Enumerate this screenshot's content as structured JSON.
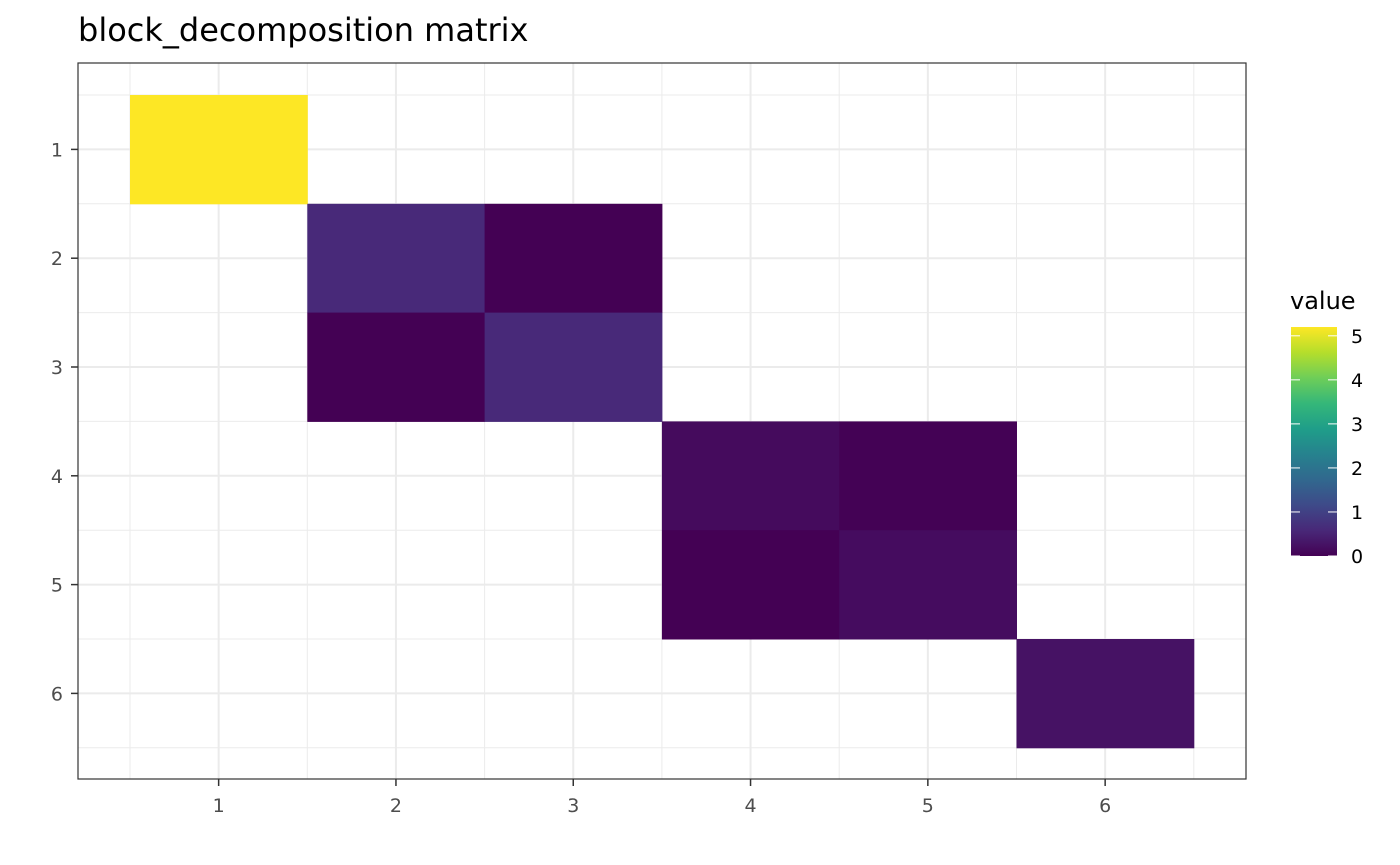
{
  "chart_data": {
    "type": "heatmap",
    "title": "block_decomposition matrix",
    "xlabel": "",
    "ylabel": "",
    "x_categories": [
      "1",
      "2",
      "3",
      "4",
      "5",
      "6"
    ],
    "y_categories": [
      "1",
      "2",
      "3",
      "4",
      "5",
      "6"
    ],
    "cells": [
      {
        "row": 1,
        "col": 1,
        "value": 5.2
      },
      {
        "row": 2,
        "col": 2,
        "value": 0.6
      },
      {
        "row": 2,
        "col": 3,
        "value": 0.0
      },
      {
        "row": 3,
        "col": 2,
        "value": 0.0
      },
      {
        "row": 3,
        "col": 3,
        "value": 0.6
      },
      {
        "row": 4,
        "col": 4,
        "value": 0.15
      },
      {
        "row": 4,
        "col": 5,
        "value": 0.02
      },
      {
        "row": 5,
        "col": 4,
        "value": 0.0
      },
      {
        "row": 5,
        "col": 5,
        "value": 0.17
      },
      {
        "row": 6,
        "col": 6,
        "value": 0.25
      }
    ],
    "missing_cells_color": "#ffffff",
    "color_scale": {
      "name": "viridis",
      "range": [
        0,
        5.2
      ],
      "stops": [
        "#440154",
        "#482878",
        "#3e4a89",
        "#31688e",
        "#26828e",
        "#1f9e89",
        "#35b779",
        "#6ece58",
        "#b5de2b",
        "#fde725"
      ]
    },
    "legend": {
      "title": "value",
      "ticks": [
        "0",
        "1",
        "2",
        "3",
        "4",
        "5"
      ],
      "position": "right"
    },
    "grid": true
  }
}
